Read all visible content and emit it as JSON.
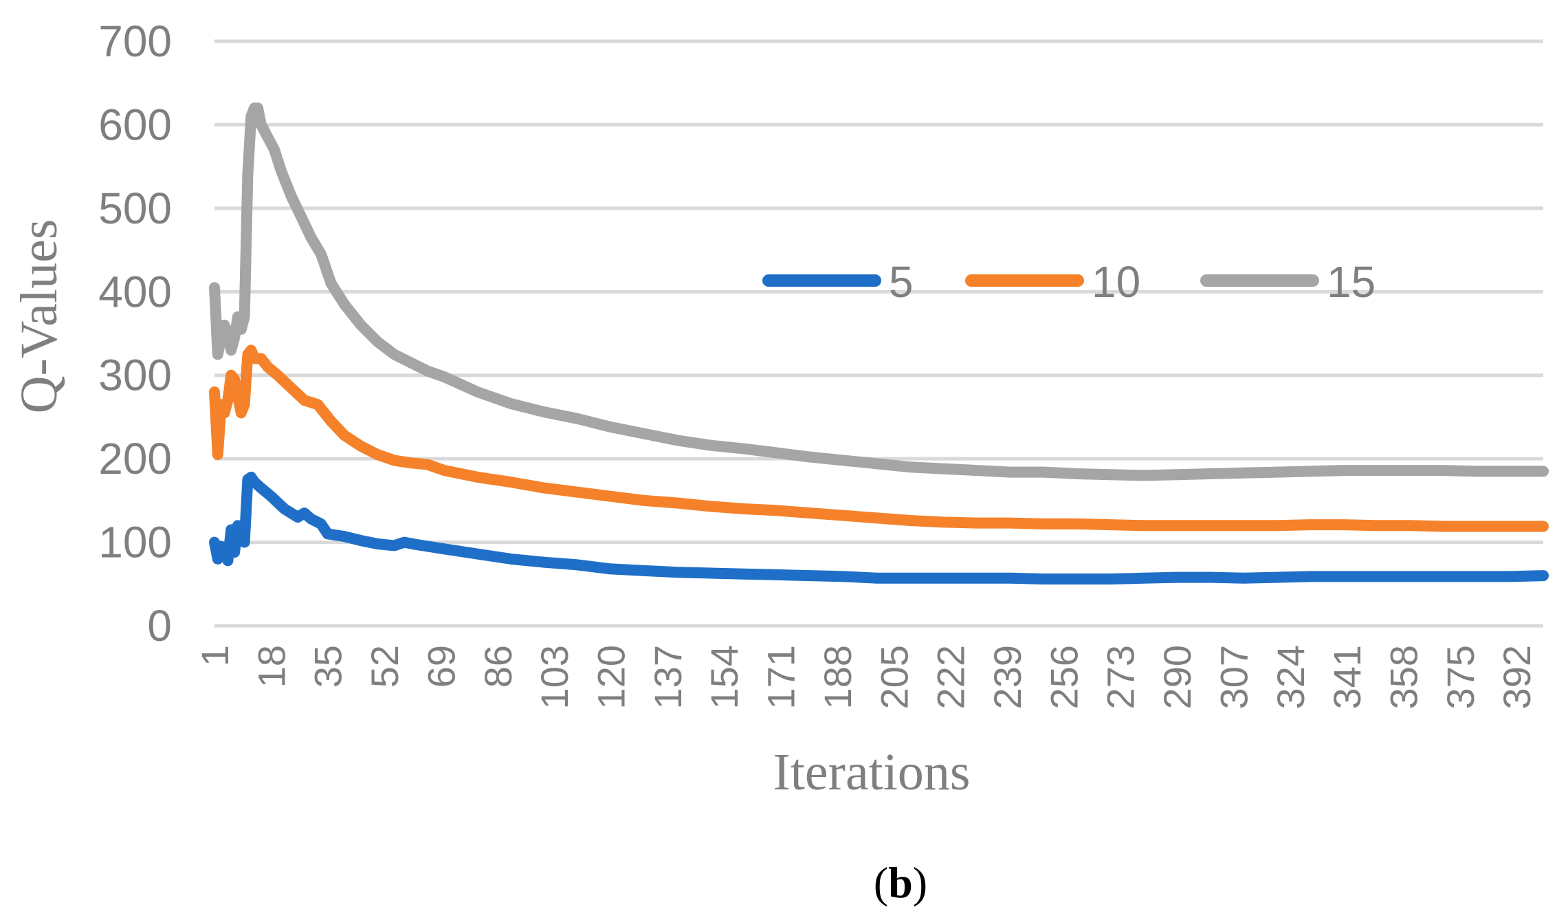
{
  "caption": {
    "open": "(",
    "letter": "b",
    "close": ")"
  },
  "chart_data": {
    "type": "line",
    "title": "",
    "xlabel": "Iterations",
    "ylabel": "Q-Values",
    "ylim": [
      0,
      700
    ],
    "yticks": [
      0,
      100,
      200,
      300,
      400,
      500,
      600,
      700
    ],
    "xlim": [
      1,
      400
    ],
    "xticks": [
      "1",
      "18",
      "35",
      "52",
      "69",
      "86",
      "103",
      "120",
      "137",
      "154",
      "171",
      "188",
      "205",
      "222",
      "239",
      "256",
      "273",
      "290",
      "307",
      "324",
      "341",
      "358",
      "375",
      "392"
    ],
    "grid": true,
    "legend_position": "top-right",
    "series": [
      {
        "name": "5",
        "color": "#1f6fc8",
        "points": [
          [
            1,
            100
          ],
          [
            2,
            80
          ],
          [
            3,
            95
          ],
          [
            4,
            90
          ],
          [
            5,
            78
          ],
          [
            6,
            115
          ],
          [
            7,
            88
          ],
          [
            8,
            120
          ],
          [
            9,
            110
          ],
          [
            10,
            100
          ],
          [
            11,
            175
          ],
          [
            12,
            178
          ],
          [
            13,
            172
          ],
          [
            15,
            165
          ],
          [
            18,
            155
          ],
          [
            22,
            140
          ],
          [
            26,
            130
          ],
          [
            28,
            135
          ],
          [
            30,
            128
          ],
          [
            33,
            122
          ],
          [
            35,
            110
          ],
          [
            40,
            107
          ],
          [
            45,
            102
          ],
          [
            50,
            98
          ],
          [
            55,
            96
          ],
          [
            58,
            100
          ],
          [
            62,
            97
          ],
          [
            70,
            92
          ],
          [
            80,
            86
          ],
          [
            90,
            80
          ],
          [
            100,
            76
          ],
          [
            110,
            73
          ],
          [
            120,
            68
          ],
          [
            130,
            66
          ],
          [
            140,
            64
          ],
          [
            150,
            63
          ],
          [
            160,
            62
          ],
          [
            170,
            61
          ],
          [
            180,
            60
          ],
          [
            190,
            59
          ],
          [
            200,
            57
          ],
          [
            210,
            57
          ],
          [
            220,
            57
          ],
          [
            230,
            57
          ],
          [
            240,
            57
          ],
          [
            250,
            56
          ],
          [
            260,
            56
          ],
          [
            270,
            56
          ],
          [
            280,
            57
          ],
          [
            290,
            58
          ],
          [
            300,
            58
          ],
          [
            310,
            57
          ],
          [
            320,
            58
          ],
          [
            330,
            59
          ],
          [
            340,
            59
          ],
          [
            350,
            59
          ],
          [
            360,
            59
          ],
          [
            370,
            59
          ],
          [
            380,
            59
          ],
          [
            390,
            59
          ],
          [
            400,
            60
          ]
        ]
      },
      {
        "name": "10",
        "color": "#f5822a",
        "points": [
          [
            1,
            280
          ],
          [
            2,
            205
          ],
          [
            3,
            265
          ],
          [
            4,
            255
          ],
          [
            5,
            270
          ],
          [
            6,
            300
          ],
          [
            7,
            295
          ],
          [
            8,
            275
          ],
          [
            9,
            255
          ],
          [
            10,
            265
          ],
          [
            11,
            325
          ],
          [
            12,
            330
          ],
          [
            13,
            320
          ],
          [
            15,
            320
          ],
          [
            17,
            310
          ],
          [
            20,
            300
          ],
          [
            24,
            285
          ],
          [
            28,
            270
          ],
          [
            32,
            265
          ],
          [
            36,
            245
          ],
          [
            40,
            228
          ],
          [
            45,
            215
          ],
          [
            50,
            205
          ],
          [
            55,
            198
          ],
          [
            60,
            195
          ],
          [
            65,
            193
          ],
          [
            70,
            186
          ],
          [
            80,
            178
          ],
          [
            90,
            172
          ],
          [
            100,
            165
          ],
          [
            110,
            160
          ],
          [
            120,
            155
          ],
          [
            130,
            150
          ],
          [
            140,
            147
          ],
          [
            150,
            143
          ],
          [
            160,
            140
          ],
          [
            170,
            138
          ],
          [
            180,
            135
          ],
          [
            190,
            132
          ],
          [
            200,
            129
          ],
          [
            210,
            126
          ],
          [
            220,
            124
          ],
          [
            230,
            123
          ],
          [
            240,
            123
          ],
          [
            250,
            122
          ],
          [
            260,
            122
          ],
          [
            270,
            121
          ],
          [
            280,
            120
          ],
          [
            290,
            120
          ],
          [
            300,
            120
          ],
          [
            310,
            120
          ],
          [
            320,
            120
          ],
          [
            330,
            121
          ],
          [
            340,
            121
          ],
          [
            350,
            120
          ],
          [
            360,
            120
          ],
          [
            370,
            119
          ],
          [
            380,
            119
          ],
          [
            390,
            119
          ],
          [
            400,
            119
          ]
        ]
      },
      {
        "name": "15",
        "color": "#a5a5a5",
        "points": [
          [
            1,
            405
          ],
          [
            2,
            325
          ],
          [
            3,
            345
          ],
          [
            4,
            360
          ],
          [
            5,
            350
          ],
          [
            6,
            330
          ],
          [
            7,
            345
          ],
          [
            8,
            370
          ],
          [
            9,
            355
          ],
          [
            10,
            370
          ],
          [
            11,
            540
          ],
          [
            12,
            610
          ],
          [
            13,
            620
          ],
          [
            14,
            620
          ],
          [
            15,
            600
          ],
          [
            17,
            585
          ],
          [
            19,
            570
          ],
          [
            21,
            545
          ],
          [
            24,
            515
          ],
          [
            27,
            490
          ],
          [
            30,
            465
          ],
          [
            33,
            445
          ],
          [
            36,
            410
          ],
          [
            40,
            385
          ],
          [
            45,
            360
          ],
          [
            50,
            340
          ],
          [
            55,
            325
          ],
          [
            60,
            315
          ],
          [
            65,
            305
          ],
          [
            70,
            298
          ],
          [
            80,
            280
          ],
          [
            90,
            266
          ],
          [
            100,
            256
          ],
          [
            110,
            248
          ],
          [
            120,
            238
          ],
          [
            130,
            230
          ],
          [
            140,
            222
          ],
          [
            150,
            216
          ],
          [
            160,
            212
          ],
          [
            170,
            207
          ],
          [
            180,
            202
          ],
          [
            190,
            198
          ],
          [
            200,
            194
          ],
          [
            210,
            190
          ],
          [
            220,
            188
          ],
          [
            230,
            186
          ],
          [
            240,
            184
          ],
          [
            250,
            184
          ],
          [
            260,
            182
          ],
          [
            270,
            181
          ],
          [
            280,
            180
          ],
          [
            290,
            181
          ],
          [
            300,
            182
          ],
          [
            310,
            183
          ],
          [
            320,
            184
          ],
          [
            330,
            185
          ],
          [
            340,
            186
          ],
          [
            350,
            186
          ],
          [
            360,
            186
          ],
          [
            370,
            186
          ],
          [
            380,
            185
          ],
          [
            390,
            185
          ],
          [
            400,
            185
          ]
        ]
      }
    ]
  }
}
